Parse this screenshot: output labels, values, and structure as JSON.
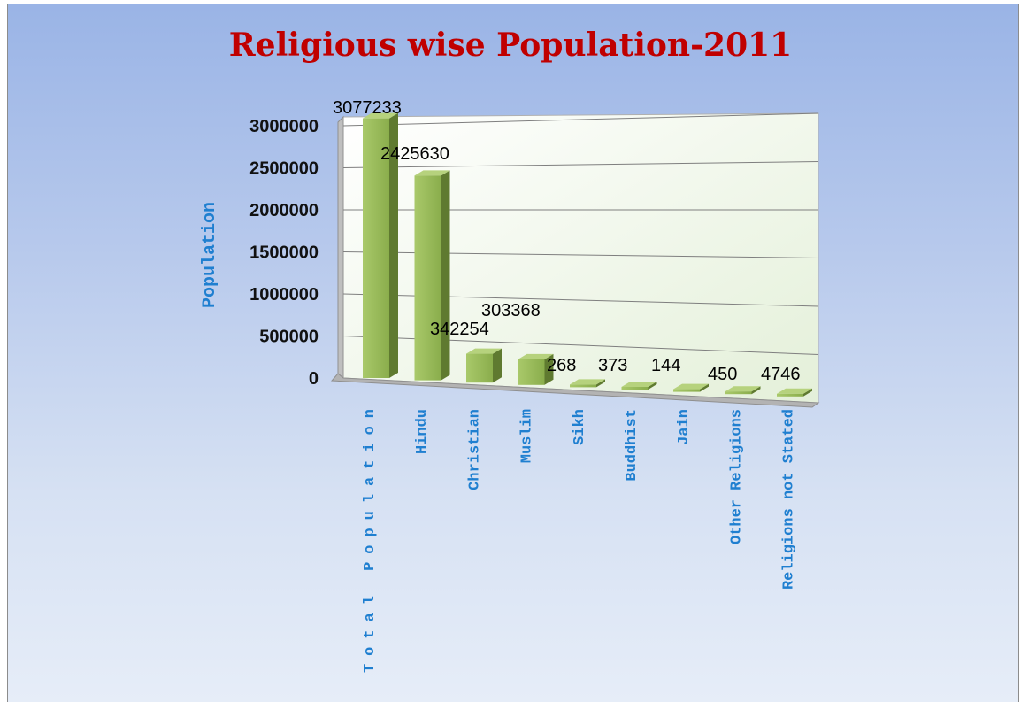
{
  "chart_data": {
    "type": "bar",
    "title": "Religious wise Population-2011",
    "xlabel": "",
    "ylabel": "Population",
    "categories": [
      "Total Population",
      "Hindu",
      "Christian",
      "Muslim",
      "Sikh",
      "Buddhist",
      "Jain",
      "Other Religions",
      "Religions not Stated"
    ],
    "values": [
      3077233,
      2425630,
      342254,
      303368,
      268,
      373,
      144,
      450,
      4746
    ],
    "data_labels": [
      "3077233",
      "2425630",
      "342254",
      "303368",
      "268",
      "373",
      "144",
      "450",
      "4746"
    ],
    "yticks": [
      "0",
      "500000",
      "1000000",
      "1500000",
      "2000000",
      "2500000",
      "3000000"
    ],
    "ylim": [
      0,
      3000000
    ],
    "grid": true,
    "legend": "none",
    "bar_color": "#9bbb59",
    "title_color": "#c00000",
    "label_color": "#1f7fd0"
  }
}
